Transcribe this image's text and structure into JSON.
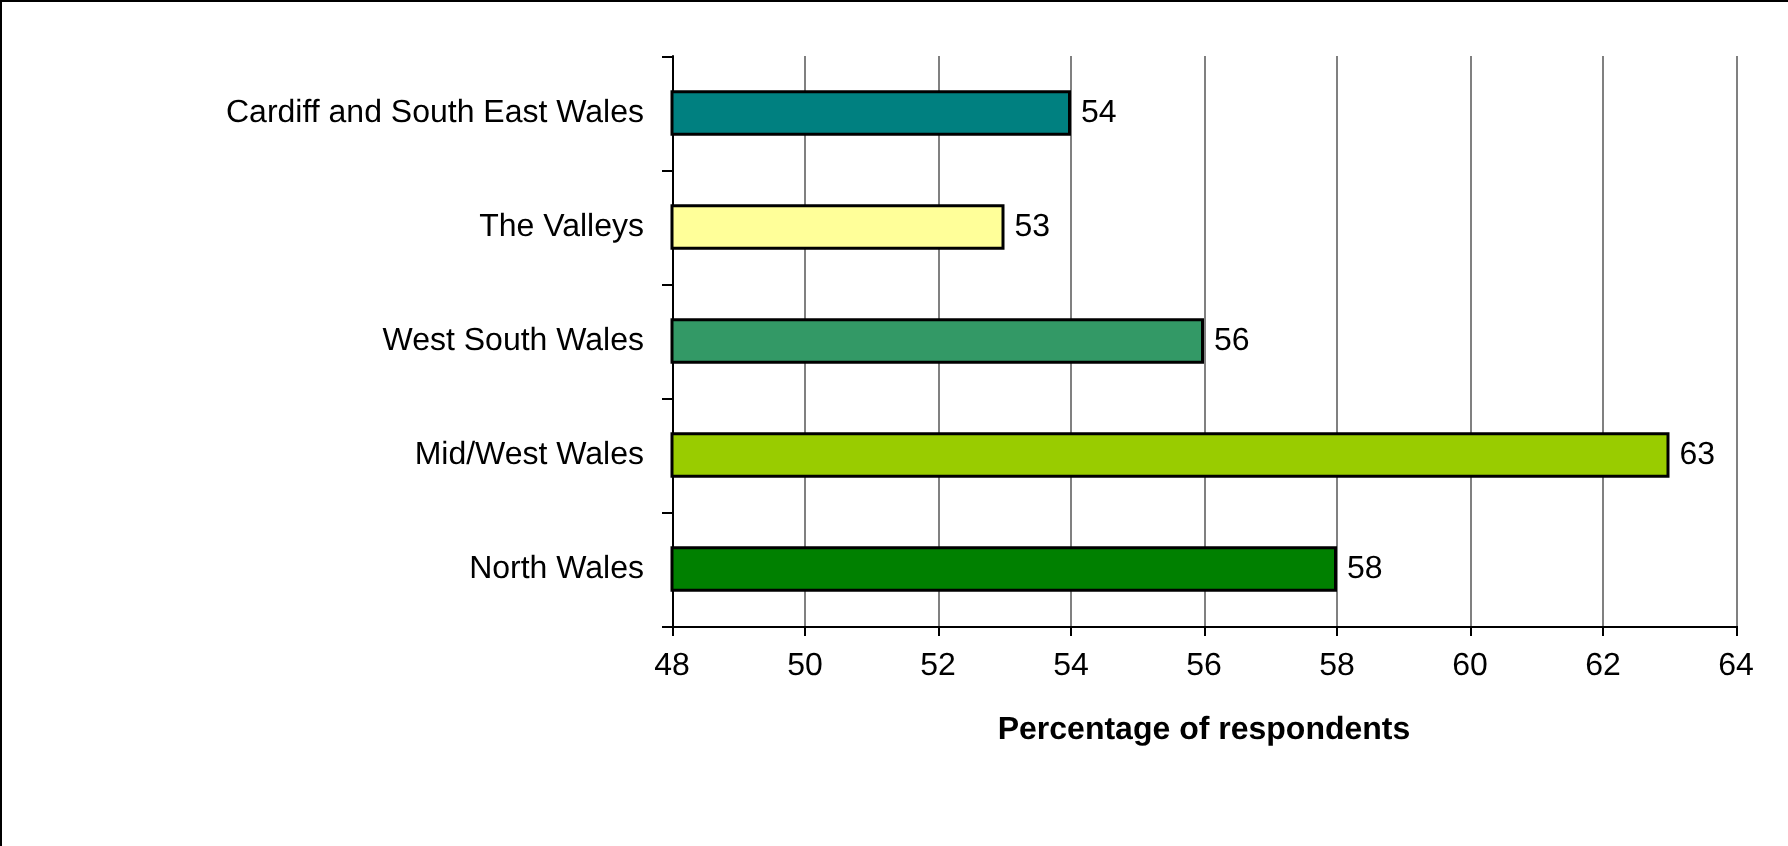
{
  "chart_data": {
    "type": "bar",
    "orientation": "horizontal",
    "xlabel": "Percentage of respondents",
    "categories": [
      "Cardiff and South East Wales",
      "The Valleys",
      "West South Wales",
      "Mid/West Wales",
      "North Wales"
    ],
    "values": [
      54,
      53,
      56,
      63,
      58
    ],
    "colors": [
      "#008080",
      "#ffff99",
      "#339966",
      "#99cc00",
      "#008000"
    ],
    "xlim": [
      48,
      64
    ],
    "xticks": [
      48,
      50,
      52,
      54,
      56,
      58,
      60,
      62,
      64
    ],
    "grid": "x",
    "data_labels": true
  }
}
